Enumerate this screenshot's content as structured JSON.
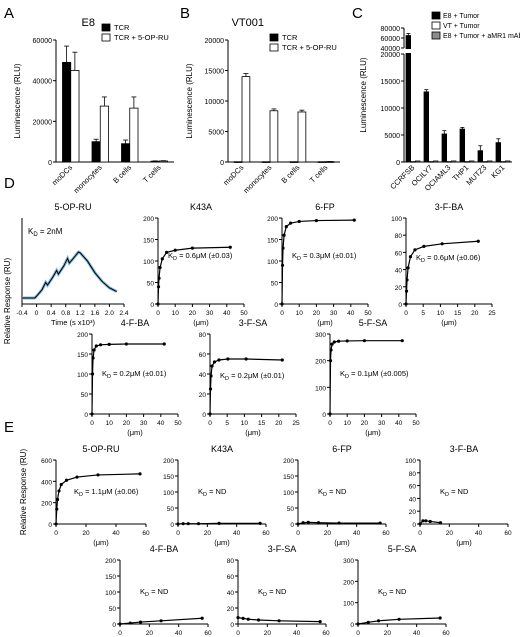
{
  "figure": {
    "letters": [
      "A",
      "B",
      "C",
      "D",
      "E"
    ]
  },
  "chart_data": [
    {
      "panel": "A",
      "type": "bar",
      "title": "E8",
      "ylabel": "Luminescence (RLU)",
      "ylim": [
        0,
        60000
      ],
      "yticks": [
        0,
        20000,
        40000,
        60000
      ],
      "categories": [
        "moDCs",
        "monocytes",
        "B cells",
        "T cells"
      ],
      "legend": [
        "TCR",
        "TCR + 5-OP-RU"
      ],
      "series": [
        {
          "name": "TCR",
          "values": [
            49000,
            10000,
            9000,
            400
          ],
          "errors": [
            8000,
            1200,
            1800,
            150
          ],
          "color": "#000000"
        },
        {
          "name": "TCR + 5-OP-RU",
          "values": [
            45000,
            27500,
            26500,
            500
          ],
          "errors": [
            9000,
            4500,
            5500,
            150
          ],
          "color": "#ffffff"
        }
      ]
    },
    {
      "panel": "B",
      "type": "bar",
      "title": "VT001",
      "ylabel": "Luminescence (RLU)",
      "ylim": [
        0,
        20000
      ],
      "yticks": [
        0,
        5000,
        10000,
        15000,
        20000
      ],
      "categories": [
        "moDCs",
        "monocytes",
        "B cells",
        "T cells"
      ],
      "legend": [
        "TCR",
        "TCR + 5-OP-RU"
      ],
      "series": [
        {
          "name": "TCR",
          "values": [
            50,
            50,
            50,
            50
          ],
          "errors": [
            0,
            0,
            0,
            0
          ],
          "color": "#000000"
        },
        {
          "name": "TCR + 5-OP-RU",
          "values": [
            14000,
            8400,
            8200,
            60
          ],
          "errors": [
            500,
            300,
            300,
            20
          ],
          "color": "#ffffff"
        }
      ]
    },
    {
      "panel": "C",
      "type": "bar",
      "ylabel": "Luminescence (RLU)",
      "yticks": [
        0,
        5000,
        10000,
        15000,
        20000,
        40000,
        60000,
        80000
      ],
      "axis_break": [
        20000,
        40000
      ],
      "categories": [
        "CCRFSB",
        "OCILY7",
        "OCIAML3",
        "THP1",
        "MUTZ3",
        "KG1"
      ],
      "legend": [
        "E8 + Tumor",
        "VT + Tumor",
        "E8 + Tumor + aMR1 mAb"
      ],
      "series": [
        {
          "name": "E8 + Tumor",
          "values": [
            65000,
            13000,
            5200,
            6100,
            2100,
            3600
          ],
          "errors": [
            4000,
            400,
            600,
            300,
            900,
            700
          ],
          "color": "#000000"
        },
        {
          "name": "VT + Tumor",
          "values": [
            100,
            100,
            100,
            100,
            100,
            100
          ],
          "errors": [
            0,
            0,
            0,
            0,
            0,
            0
          ],
          "color": "#ffffff"
        },
        {
          "name": "E8 + Tumor + aMR1 mAb",
          "values": [
            200,
            200,
            200,
            200,
            200,
            200
          ],
          "errors": [
            0,
            0,
            0,
            0,
            0,
            0
          ],
          "color": "#8c8c8c"
        }
      ]
    },
    {
      "panel": "D",
      "type": "line",
      "title": "5-OP-RU",
      "ylabel": "Relative Response (RU)",
      "xlabel": "Time (s x10³)",
      "xlim": [
        -0.4,
        2.4
      ],
      "xticks": [
        "-0.4",
        "0",
        "0.4",
        "0.8",
        "1.2",
        "1.6",
        "2.0",
        "2.4"
      ],
      "annotation": "K₀ = 2nM",
      "series": [
        {
          "x": [
            -0.4,
            -0.05,
            0.0,
            0.15,
            0.25,
            0.3,
            0.45,
            0.55,
            0.6,
            0.75,
            0.85,
            0.9,
            1.05,
            1.15,
            1.2,
            1.4,
            1.6,
            1.8,
            2.0,
            2.2
          ],
          "y": [
            0.0,
            0.0,
            0.04,
            0.18,
            0.34,
            0.28,
            0.46,
            0.6,
            0.52,
            0.7,
            0.86,
            0.76,
            0.9,
            1.0,
            0.98,
            0.8,
            0.55,
            0.36,
            0.22,
            0.14
          ]
        }
      ]
    },
    {
      "panel": "D",
      "type": "scatter",
      "title": "K43A",
      "xlabel": "(μm)",
      "xlim": [
        0,
        50
      ],
      "xticks": [
        0,
        10,
        20,
        30,
        40,
        50
      ],
      "ylim": [
        0,
        200
      ],
      "yticks": [
        0,
        50,
        100,
        150,
        200
      ],
      "annotation": "K₀ = 0.6μM (±0.03)",
      "series": [
        {
          "x": [
            0,
            0.3,
            0.6,
            1.2,
            2.5,
            5,
            10,
            20,
            42
          ],
          "y": [
            0,
            40,
            60,
            85,
            105,
            120,
            125,
            130,
            132
          ]
        }
      ]
    },
    {
      "panel": "D",
      "type": "scatter",
      "title": "6-FP",
      "xlabel": "(μm)",
      "xlim": [
        0,
        50
      ],
      "xticks": [
        0,
        10,
        20,
        30,
        40,
        50
      ],
      "ylim": [
        0,
        200
      ],
      "yticks": [
        0,
        50,
        100,
        150,
        200
      ],
      "annotation": "K₀ = 0.3μM (±0.01)",
      "series": [
        {
          "x": [
            0,
            0.3,
            0.6,
            1.2,
            2.5,
            5,
            10,
            20,
            42
          ],
          "y": [
            0,
            90,
            130,
            160,
            180,
            188,
            192,
            194,
            195
          ]
        }
      ]
    },
    {
      "panel": "D",
      "type": "scatter",
      "title": "3-F-BA",
      "xlabel": "(μm)",
      "xlim": [
        0,
        25
      ],
      "xticks": [
        0,
        5,
        10,
        15,
        20,
        25
      ],
      "ylim": [
        0,
        100
      ],
      "yticks": [
        0,
        20,
        40,
        60,
        80,
        100
      ],
      "annotation": "K₀ = 0.6μM (±0.06)",
      "series": [
        {
          "x": [
            0,
            0.15,
            0.3,
            0.6,
            1.3,
            2.6,
            5.2,
            10.5,
            21
          ],
          "y": [
            0,
            15,
            28,
            42,
            55,
            63,
            67,
            70,
            73
          ]
        }
      ]
    },
    {
      "panel": "D",
      "type": "scatter",
      "title": "4-F-BA",
      "xlabel": "(μm)",
      "xlim": [
        0,
        50
      ],
      "xticks": [
        0,
        10,
        20,
        30,
        40,
        50
      ],
      "ylim": [
        0,
        200
      ],
      "yticks": [
        0,
        50,
        100,
        150,
        200
      ],
      "annotation": "K₀ = 0.2μM (±0.01)",
      "series": [
        {
          "x": [
            0,
            0.3,
            0.6,
            1.2,
            2.5,
            5,
            10,
            20,
            42
          ],
          "y": [
            0,
            100,
            140,
            160,
            170,
            173,
            174,
            175,
            175
          ]
        }
      ]
    },
    {
      "panel": "D",
      "type": "scatter",
      "title": "3-F-SA",
      "xlabel": "(μm)",
      "xlim": [
        0,
        25
      ],
      "xticks": [
        0,
        5,
        10,
        15,
        20,
        25
      ],
      "ylim": [
        0,
        80
      ],
      "yticks": [
        0,
        20,
        40,
        60,
        80
      ],
      "annotation": "K₀ = 0.2μM (±0.01)",
      "series": [
        {
          "x": [
            0,
            0.15,
            0.3,
            0.6,
            1.3,
            2.6,
            5.2,
            10.5,
            21
          ],
          "y": [
            0,
            25,
            38,
            48,
            52,
            54,
            55,
            55,
            54
          ]
        }
      ]
    },
    {
      "panel": "D",
      "type": "scatter",
      "title": "5-F-SA",
      "xlabel": "(μm)",
      "xlim": [
        0,
        50
      ],
      "xticks": [
        0,
        10,
        20,
        30,
        40,
        50
      ],
      "ylim": [
        0,
        300
      ],
      "yticks": [
        0,
        100,
        200,
        300
      ],
      "annotation": "K₀ = 0.1μM (±0.005)",
      "series": [
        {
          "x": [
            0,
            0.3,
            0.6,
            1.2,
            2.5,
            5,
            10,
            20,
            42
          ],
          "y": [
            0,
            200,
            240,
            262,
            270,
            273,
            274,
            275,
            275
          ]
        }
      ]
    },
    {
      "panel": "E",
      "type": "scatter",
      "title": "5-OP-RU",
      "ylabel": "Relative Response (RU)",
      "xlabel": "(μm)",
      "xlim": [
        0,
        60
      ],
      "xticks": [
        0,
        20,
        40,
        60
      ],
      "ylim": [
        0,
        600
      ],
      "yticks": [
        0,
        200,
        400,
        600
      ],
      "annotation": "K₀ = 1.1μM (±0.06)",
      "series": [
        {
          "x": [
            0,
            0.5,
            1,
            2,
            3.5,
            7,
            14,
            28,
            56
          ],
          "y": [
            0,
            140,
            230,
            310,
            370,
            410,
            440,
            460,
            470
          ]
        }
      ]
    },
    {
      "panel": "E",
      "type": "scatter",
      "title": "K43A",
      "xlabel": "(μm)",
      "xlim": [
        0,
        60
      ],
      "xticks": [
        0,
        20,
        40,
        60
      ],
      "ylim": [
        0,
        200
      ],
      "yticks": [
        0,
        50,
        100,
        150,
        200
      ],
      "annotation": "K₀ = ND",
      "series": [
        {
          "x": [
            0,
            3.5,
            7,
            14,
            28,
            56
          ],
          "y": [
            0,
            1,
            1,
            1,
            2,
            2
          ]
        }
      ]
    },
    {
      "panel": "E",
      "type": "scatter",
      "title": "6-FP",
      "xlabel": "(μm)",
      "xlim": [
        0,
        60
      ],
      "xticks": [
        0,
        20,
        40,
        60
      ],
      "ylim": [
        0,
        200
      ],
      "yticks": [
        0,
        50,
        100,
        150,
        200
      ],
      "annotation": "K₀ = ND",
      "series": [
        {
          "x": [
            0,
            3.5,
            7,
            14,
            28,
            56
          ],
          "y": [
            0,
            4,
            5,
            4,
            3,
            3
          ]
        }
      ]
    },
    {
      "panel": "E",
      "type": "scatter",
      "title": "3-F-BA",
      "xlabel": "(μm)",
      "xlim": [
        0,
        60
      ],
      "xticks": [
        0,
        20,
        40,
        60
      ],
      "ylim": [
        0,
        100
      ],
      "yticks": [
        0,
        20,
        40,
        60,
        80,
        100
      ],
      "annotation": "K₀ = ND",
      "series": [
        {
          "x": [
            0,
            2,
            4,
            7,
            14
          ],
          "y": [
            0,
            5,
            5,
            4,
            2
          ]
        }
      ]
    },
    {
      "panel": "E",
      "type": "scatter",
      "title": "4-F-BA",
      "xlabel": "(μm)",
      "xlim": [
        0,
        60
      ],
      "xticks": [
        0,
        20,
        40,
        60
      ],
      "ylim": [
        0,
        200
      ],
      "yticks": [
        0,
        50,
        100,
        150,
        200
      ],
      "annotation": "K₀ = ND",
      "series": [
        {
          "x": [
            0,
            7,
            14,
            28,
            56
          ],
          "y": [
            0,
            3,
            6,
            10,
            18
          ]
        }
      ]
    },
    {
      "panel": "E",
      "type": "scatter",
      "title": "3-F-SA",
      "xlabel": "(μm)",
      "xlim": [
        0,
        60
      ],
      "xticks": [
        0,
        20,
        40,
        60
      ],
      "ylim": [
        0,
        80
      ],
      "yticks": [
        0,
        20,
        40,
        60,
        80
      ],
      "annotation": "K₀ = ND",
      "series": [
        {
          "x": [
            0,
            3.5,
            7,
            14,
            28,
            56
          ],
          "y": [
            8,
            7,
            6,
            5,
            4,
            3
          ]
        }
      ]
    },
    {
      "panel": "E",
      "type": "scatter",
      "title": "5-F-SA",
      "xlabel": "(μm)",
      "xlim": [
        0,
        60
      ],
      "xticks": [
        0,
        20,
        40,
        60
      ],
      "ylim": [
        0,
        300
      ],
      "yticks": [
        0,
        100,
        200,
        300
      ],
      "annotation": "K₀ = ND",
      "series": [
        {
          "x": [
            0,
            7,
            14,
            28,
            56
          ],
          "y": [
            0,
            8,
            15,
            22,
            28
          ]
        }
      ]
    }
  ]
}
